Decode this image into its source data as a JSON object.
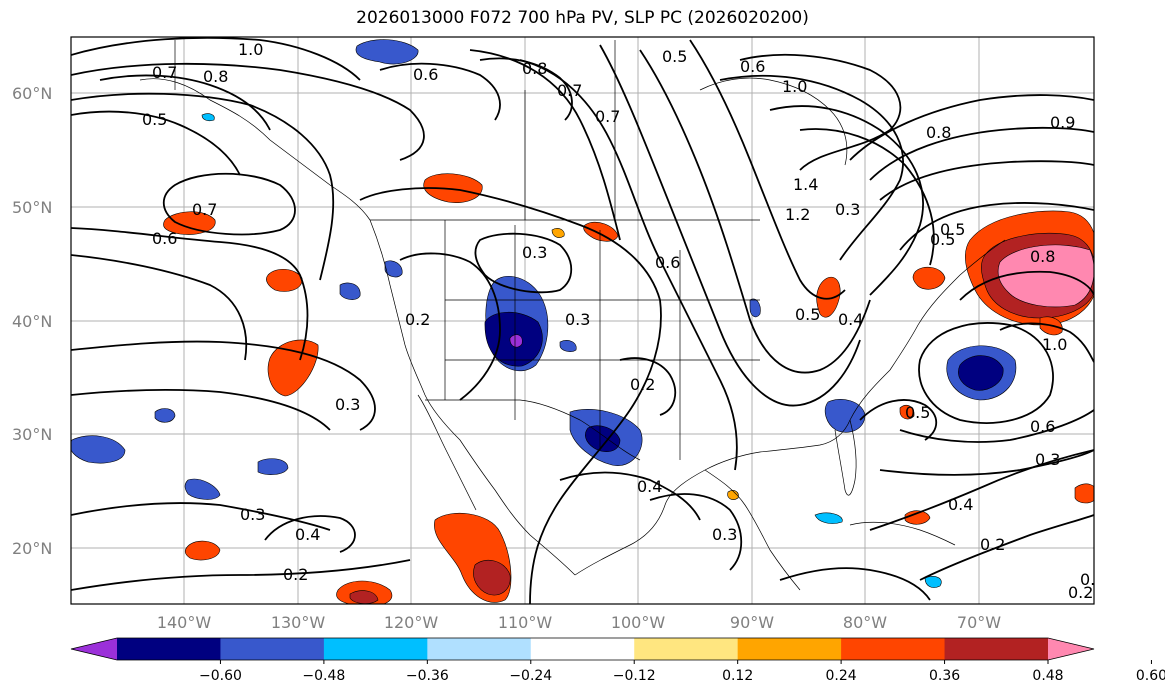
{
  "title": "2026013000 F072 700 hPa PV, SLP PC (2026020200)",
  "lat_labels": [
    {
      "text": "60°N",
      "lat": 60
    },
    {
      "text": "50°N",
      "lat": 50
    },
    {
      "text": "40°N",
      "lat": 40
    },
    {
      "text": "30°N",
      "lat": 30
    },
    {
      "text": "20°N",
      "lat": 20
    }
  ],
  "lon_labels": [
    {
      "text": "140°W",
      "lon": -140
    },
    {
      "text": "130°W",
      "lon": -130
    },
    {
      "text": "120°W",
      "lon": -120
    },
    {
      "text": "110°W",
      "lon": -110
    },
    {
      "text": "100°W",
      "lon": -100
    },
    {
      "text": "90°W",
      "lon": -90
    },
    {
      "text": "80°W",
      "lon": -80
    },
    {
      "text": "70°W",
      "lon": -70
    }
  ],
  "colorbar": {
    "colors": [
      "#9b30d9",
      "#000080",
      "#3858cc",
      "#00bfff",
      "#b0e0ff",
      "#ffffff",
      "#ffe680",
      "#ffa500",
      "#ff4500",
      "#b22222",
      "#ff88b0"
    ],
    "ticks": [
      "−0.60",
      "−0.48",
      "−0.36",
      "−0.24",
      "−0.12",
      "0.12",
      "0.24",
      "0.36",
      "0.48",
      "0.60"
    ]
  },
  "contour_labels": [
    {
      "text": "1.0"
    },
    {
      "text": "0.7"
    },
    {
      "text": "0.8"
    },
    {
      "text": "0.6"
    },
    {
      "text": "0.8"
    },
    {
      "text": "0.7"
    },
    {
      "text": "0.5"
    },
    {
      "text": "0.5"
    },
    {
      "text": "0.6"
    },
    {
      "text": "1.0"
    },
    {
      "text": "0.8"
    },
    {
      "text": "0.7"
    },
    {
      "text": "0.6"
    },
    {
      "text": "0.3"
    },
    {
      "text": "0.6"
    },
    {
      "text": "0.2"
    },
    {
      "text": "0.3"
    },
    {
      "text": "0.2"
    },
    {
      "text": "1.4"
    },
    {
      "text": "1.2"
    },
    {
      "text": "0.3"
    },
    {
      "text": "0.5"
    },
    {
      "text": "0.8"
    },
    {
      "text": "1.0"
    },
    {
      "text": "0.3"
    },
    {
      "text": "0.5"
    },
    {
      "text": "0.4"
    },
    {
      "text": "0.6"
    },
    {
      "text": "0.3"
    },
    {
      "text": "0.4"
    },
    {
      "text": "0.2"
    },
    {
      "text": "0.3"
    },
    {
      "text": "0.4"
    },
    {
      "text": "0.3"
    },
    {
      "text": "0.2"
    },
    {
      "text": "0.5"
    },
    {
      "text": "0.4"
    },
    {
      "text": "0.2"
    },
    {
      "text": "0.9"
    },
    {
      "text": "0.7"
    },
    {
      "text": "0.5"
    },
    {
      "text": "0.2"
    }
  ]
}
